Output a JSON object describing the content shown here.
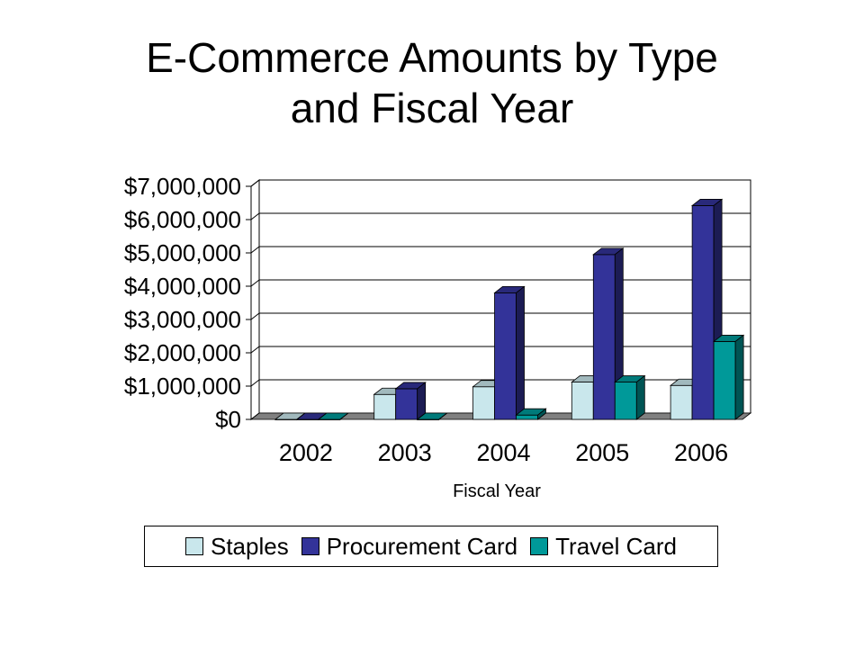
{
  "slide": {
    "title_line1": "E-Commerce Amounts by Type",
    "title_line2": "and Fiscal Year"
  },
  "chart_data": {
    "type": "bar",
    "style": "3d-clustered-column",
    "categories": [
      "2002",
      "2003",
      "2004",
      "2005",
      "2006"
    ],
    "series": [
      {
        "name": "Staples",
        "color": "#C9E7EC",
        "values": [
          0,
          750000,
          980000,
          1120000,
          1020000
        ]
      },
      {
        "name": "Procurement Card",
        "color": "#333399",
        "values": [
          0,
          920000,
          3800000,
          4950000,
          6420000
        ]
      },
      {
        "name": "Travel Card",
        "color": "#009999",
        "values": [
          0,
          0,
          130000,
          1120000,
          2340000
        ]
      }
    ],
    "xlabel": "Fiscal Year",
    "ylabel": "",
    "ylim": [
      0,
      7000000
    ],
    "yticks": [
      0,
      1000000,
      2000000,
      3000000,
      4000000,
      5000000,
      6000000,
      7000000
    ],
    "ytick_labels": [
      "$0",
      "$1,000,000",
      "$2,000,000",
      "$3,000,000",
      "$4,000,000",
      "$5,000,000",
      "$6,000,000",
      "$7,000,000"
    ],
    "grid": true,
    "legend_position": "bottom"
  }
}
